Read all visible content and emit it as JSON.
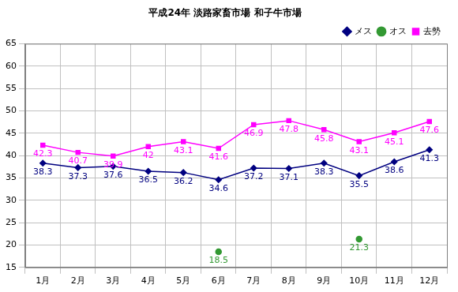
{
  "chart_data": {
    "type": "line",
    "title": "平成24年 淡路家畜市場 和子牛市場",
    "categories": [
      "1月",
      "2月",
      "3月",
      "4月",
      "5月",
      "6月",
      "7月",
      "8月",
      "9月",
      "10月",
      "11月",
      "12月"
    ],
    "series": [
      {
        "name": "メス",
        "color": "#000080",
        "marker": "diamond",
        "values": [
          38.3,
          37.3,
          37.6,
          36.5,
          36.2,
          34.6,
          37.2,
          37.1,
          38.3,
          35.5,
          38.6,
          41.3
        ]
      },
      {
        "name": "オス",
        "color": "#339933",
        "marker": "circle",
        "values": [
          null,
          null,
          null,
          null,
          null,
          18.5,
          null,
          null,
          null,
          21.3,
          null,
          null
        ]
      },
      {
        "name": "去勢",
        "color": "#ff00ff",
        "marker": "square",
        "values": [
          42.3,
          40.7,
          39.9,
          42,
          43.1,
          41.6,
          46.9,
          47.8,
          45.8,
          43.1,
          45.1,
          47.6
        ]
      }
    ],
    "ylim": [
      15,
      65
    ],
    "yticks": [
      15,
      20,
      25,
      30,
      35,
      40,
      45,
      50,
      55,
      60,
      65
    ],
    "grid": true,
    "legend": "top-right",
    "data_labels": true
  }
}
